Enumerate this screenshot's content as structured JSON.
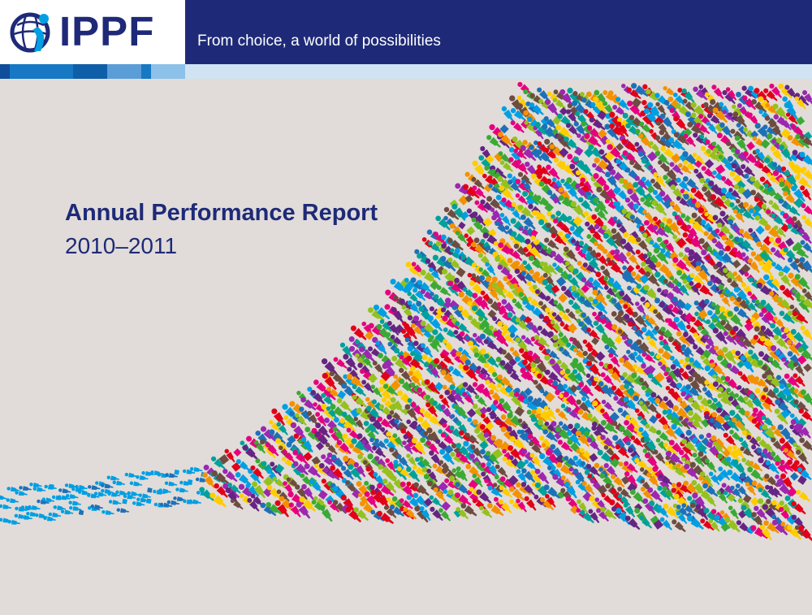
{
  "header": {
    "logo_text": "IPPF",
    "tagline": "From choice, a world of possibilities"
  },
  "cover": {
    "title": "Annual Performance Report",
    "subtitle": "2010–2011"
  },
  "icons": {
    "logo": "globe-figure-icon",
    "crowd": "people-pictogram-icon"
  },
  "colors": {
    "navy": "#1e2a78",
    "background": "#e1dcd9",
    "palette": [
      "#e6007e",
      "#e2001a",
      "#f39200",
      "#95c11f",
      "#3aaa35",
      "#009fe3",
      "#1d71b8",
      "#662483",
      "#9c27b0",
      "#00a19a",
      "#ffcc00",
      "#6d4c41"
    ]
  }
}
